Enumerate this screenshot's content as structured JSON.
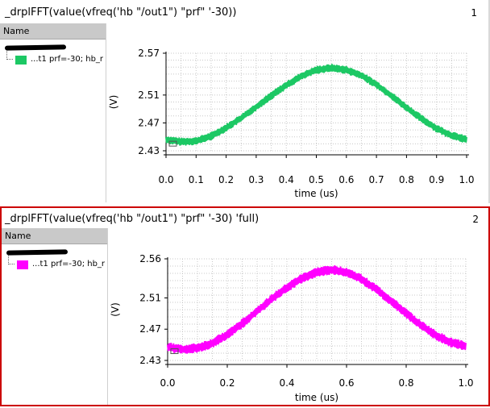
{
  "panes": [
    {
      "title": "_drplFFT(value(vfreq('hb \"/out1\") \"prf\" '-30))",
      "number": "1",
      "legend": {
        "header": "Name",
        "entry": "...t1 prf=-30; hb_r"
      },
      "color": "#1cc864"
    },
    {
      "title": "_drplFFT(value(vfreq('hb \"/out1\") \"prf\" '-30) 'full)",
      "number": "2",
      "legend": {
        "header": "Name",
        "entry": "...t1 prf=-30; hb_r"
      },
      "color": "#ff00ff"
    }
  ],
  "chart_data": [
    {
      "type": "line",
      "title": "_drplFFT(value(vfreq('hb \"/out1\") \"prf\" '-30))",
      "xlabel": "time (us)",
      "ylabel": "(V)",
      "xlim": [
        0,
        1.0
      ],
      "ylim": [
        2.43,
        2.57
      ],
      "xticks": [
        "0.0",
        "0.1",
        "0.2",
        "0.3",
        "0.4",
        "0.5",
        "0.6",
        "0.7",
        "0.8",
        "0.9",
        "1.0"
      ],
      "yticks": [
        "2.57",
        "2.51",
        "2.47",
        "2.43"
      ],
      "grid": true,
      "series": [
        {
          "name": "...t1 prf=-30; hb_r",
          "color": "#1cc864",
          "x": [
            0.0,
            0.05,
            0.1,
            0.15,
            0.2,
            0.25,
            0.3,
            0.35,
            0.4,
            0.45,
            0.5,
            0.55,
            0.6,
            0.65,
            0.7,
            0.75,
            0.8,
            0.85,
            0.9,
            0.95,
            1.0
          ],
          "y": [
            2.446,
            2.443,
            2.444,
            2.451,
            2.463,
            2.477,
            2.493,
            2.509,
            2.524,
            2.537,
            2.546,
            2.549,
            2.546,
            2.538,
            2.525,
            2.509,
            2.492,
            2.476,
            2.462,
            2.452,
            2.446
          ],
          "band": 0.01
        }
      ]
    },
    {
      "type": "line",
      "title": "_drplFFT(value(vfreq('hb \"/out1\") \"prf\" '-30) 'full)",
      "xlabel": "time (us)",
      "ylabel": "(V)",
      "xlim": [
        0,
        1.0
      ],
      "ylim": [
        2.43,
        2.56
      ],
      "xticks": [
        "0.0",
        "0.2",
        "0.4",
        "0.6",
        "0.8",
        "1.0"
      ],
      "yticks": [
        "2.56",
        "2.51",
        "2.47",
        "2.43"
      ],
      "grid": true,
      "series": [
        {
          "name": "...t1 prf=-30; hb_r",
          "color": "#ff00ff",
          "x": [
            0.0,
            0.05,
            0.1,
            0.15,
            0.2,
            0.25,
            0.3,
            0.35,
            0.4,
            0.45,
            0.5,
            0.55,
            0.6,
            0.65,
            0.7,
            0.75,
            0.8,
            0.85,
            0.9,
            0.95,
            1.0
          ],
          "y": [
            2.447,
            2.444,
            2.446,
            2.452,
            2.463,
            2.477,
            2.493,
            2.509,
            2.523,
            2.535,
            2.543,
            2.546,
            2.543,
            2.534,
            2.521,
            2.506,
            2.49,
            2.475,
            2.462,
            2.453,
            2.448
          ],
          "band": 0.011
        }
      ]
    }
  ]
}
